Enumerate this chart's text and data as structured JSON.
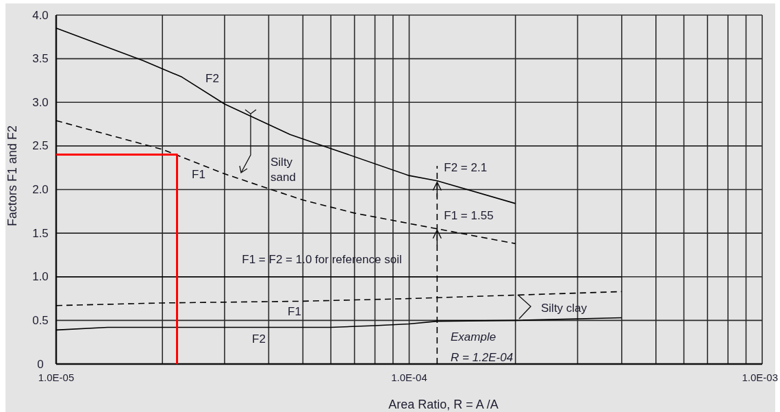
{
  "chart_data": {
    "type": "line",
    "xlabel": "Area Ratio, R = A /A",
    "ylabel": "Factors F1 and F2",
    "log": "x",
    "grid": true,
    "marker": "none",
    "xlim": [
      1e-05,
      0.001
    ],
    "xticks": [
      {
        "value": 1e-05,
        "label": "1.0E-05"
      },
      {
        "value": 2e-05,
        "label": null
      },
      {
        "value": 3e-05,
        "label": null
      },
      {
        "value": 4e-05,
        "label": null
      },
      {
        "value": 5e-05,
        "label": null
      },
      {
        "value": 6e-05,
        "label": null
      },
      {
        "value": 7e-05,
        "label": null
      },
      {
        "value": 8e-05,
        "label": null
      },
      {
        "value": 9e-05,
        "label": null
      },
      {
        "value": 0.0001,
        "label": "1.0E-04"
      },
      {
        "value": 0.0002,
        "label": null
      },
      {
        "value": 0.0003,
        "label": null
      },
      {
        "value": 0.0004,
        "label": null
      },
      {
        "value": 0.0005,
        "label": null
      },
      {
        "value": 0.0006,
        "label": null
      },
      {
        "value": 0.0007,
        "label": null
      },
      {
        "value": 0.0008,
        "label": null
      },
      {
        "value": 0.0009,
        "label": null
      },
      {
        "value": 0.001,
        "label": "1.0E-03"
      }
    ],
    "ylim": [
      0,
      4
    ],
    "yticks": [
      0,
      {
        "value": 0.5,
        "label": "0.5"
      },
      {
        "value": 1,
        "label": "1.0"
      },
      {
        "value": 1.5,
        "label": "1.5"
      },
      {
        "value": 2,
        "label": "2.0"
      },
      {
        "value": 2.5,
        "label": "2.5"
      },
      {
        "value": 3,
        "label": "3.0"
      },
      {
        "value": 3.5,
        "label": "3.5"
      },
      {
        "value": 4,
        "label": "4.0"
      }
    ],
    "series": [
      {
        "name": "F2",
        "color": "#000000",
        "line_style": "solid",
        "x": [
          1e-05,
          1.76e-05,
          2.27e-05,
          3e-05,
          4.6e-05,
          6e-05,
          0.0001,
          0.00012,
          0.0002
        ],
        "values": [
          3.85,
          3.48,
          3.29,
          2.98,
          2.63,
          2.47,
          2.16,
          2.1,
          1.84
        ]
      },
      {
        "name": "F1",
        "color": "#000000",
        "line_style": "dashed",
        "x": [
          1e-05,
          2e-05,
          3e-05,
          4e-05,
          5e-05,
          7e-05,
          0.00012,
          0.0002
        ],
        "values": [
          2.79,
          2.46,
          2.18,
          2.01,
          1.88,
          1.73,
          1.55,
          1.38
        ]
      },
      {
        "color": "#000000",
        "line_style": "solid",
        "x": [
          1e-05,
          0.0004
        ],
        "values": [
          1,
          1
        ]
      },
      {
        "name": "F1",
        "color": "#000000",
        "line_style": "dashed",
        "x": [
          1e-05,
          2e-05,
          5e-05,
          0.0001,
          0.0002,
          0.0004
        ],
        "values": [
          0.67,
          0.7,
          0.72,
          0.75,
          0.79,
          0.83
        ]
      },
      {
        "name": "F2",
        "color": "#000000",
        "line_style": "solid",
        "x": [
          1e-05,
          1.4e-05,
          6e-05,
          8e-05,
          0.0001,
          0.00012,
          0.0002,
          0.0004
        ],
        "values": [
          0.39,
          0.42,
          0.42,
          0.44,
          0.46,
          0.49,
          0.5,
          0.53
        ]
      },
      {
        "color": "#ff0000",
        "line_style": "solid",
        "x": [
          1e-05,
          2.2e-05,
          2.2e-05
        ],
        "values": [
          2.4,
          2.4,
          0
        ]
      }
    ],
    "ref_lines": [
      {
        "axis": "x",
        "value": 0.00012,
        "color": "#000000",
        "line_style": "dashed"
      }
    ],
    "annotations": [
      "Silty sand",
      "F1 = F2 = 1.0 for reference soil",
      "Silty clay",
      "Example",
      "R = 1.2E-04",
      {
        "text": "F2 = 2.1",
        "x": 0.00012,
        "y": 2.1
      },
      {
        "text": "F1 = 1.55",
        "x": 0.00012,
        "y": 1.55
      }
    ]
  }
}
